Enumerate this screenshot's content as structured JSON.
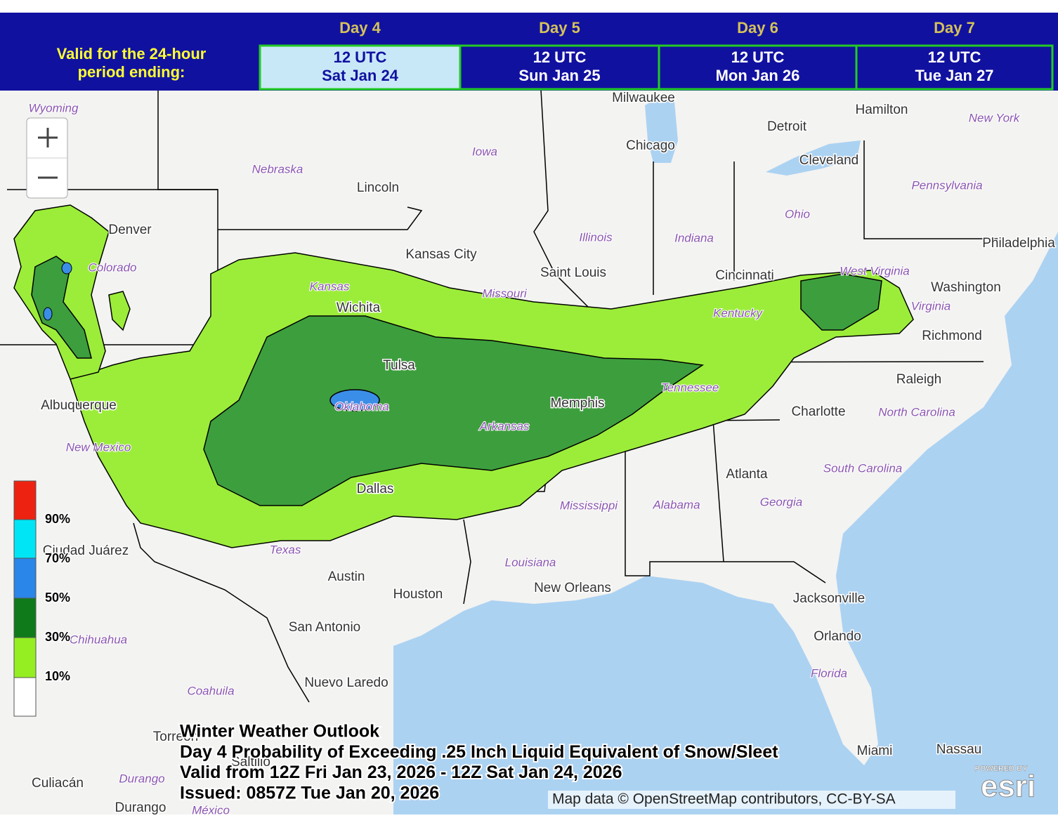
{
  "header": {
    "valid_label": [
      "Valid for the 24-hour",
      "period ending:"
    ]
  },
  "tabs": [
    {
      "day": "Day 4",
      "time": "12 UTC",
      "date": "Sat Jan 24"
    },
    {
      "day": "Day 5",
      "time": "12 UTC",
      "date": "Sun Jan 25"
    },
    {
      "day": "Day 6",
      "time": "12 UTC",
      "date": "Mon Jan 26"
    },
    {
      "day": "Day 7",
      "time": "12 UTC",
      "date": "Tue Jan 27"
    }
  ],
  "map": {
    "cities": [
      "Milwaukee",
      "Hamilton",
      "Detroit",
      "Chicago",
      "Cleveland",
      "Lincoln",
      "Denver",
      "Kansas City",
      "Saint Louis",
      "Cincinnati",
      "Philadelphia",
      "Washington",
      "Richmond",
      "Wichita",
      "Tulsa",
      "Raleigh",
      "Albuquerque",
      "Memphis",
      "Charlotte",
      "Atlanta",
      "Dallas",
      "Ciudad Juárez",
      "Austin",
      "Houston",
      "New Orleans",
      "Jacksonville",
      "San Antonio",
      "Orlando",
      "Nuevo Laredo",
      "Torreón",
      "Saltillo",
      "Miami",
      "Nassau",
      "Culiacán",
      "Durango"
    ],
    "states": [
      "Wyoming",
      "Iowa",
      "New York",
      "Nebraska",
      "Pennsylvania",
      "Ohio",
      "Illinois",
      "Indiana",
      "Colorado",
      "Kansas",
      "Missouri",
      "West Virginia",
      "Virginia",
      "Kentucky",
      "Oklahoma",
      "Tennessee",
      "North Carolina",
      "Arkansas",
      "New Mexico",
      "South Carolina",
      "Mississippi",
      "Alabama",
      "Georgia",
      "Texas",
      "Louisiana",
      "Chihuahua",
      "Florida",
      "Coahuila",
      "Durango",
      "México"
    ]
  },
  "legend": {
    "labels": [
      "90%",
      "70%",
      "50%",
      "30%",
      "10%"
    ]
  },
  "title_block": {
    "lines": [
      "Winter Weather Outlook",
      "Day 4 Probability of Exceeding .25 Inch Liquid Equivalent of Snow/Sleet",
      "Valid from 12Z Fri Jan 23, 2026 - 12Z Sat Jan 24, 2026",
      "Issued: 0857Z Tue Jan 20, 2026"
    ]
  },
  "attribution": "Map data © OpenStreetMap contributors, CC-BY-SA",
  "logo": {
    "small": "POWERED BY",
    "large": "esri"
  }
}
